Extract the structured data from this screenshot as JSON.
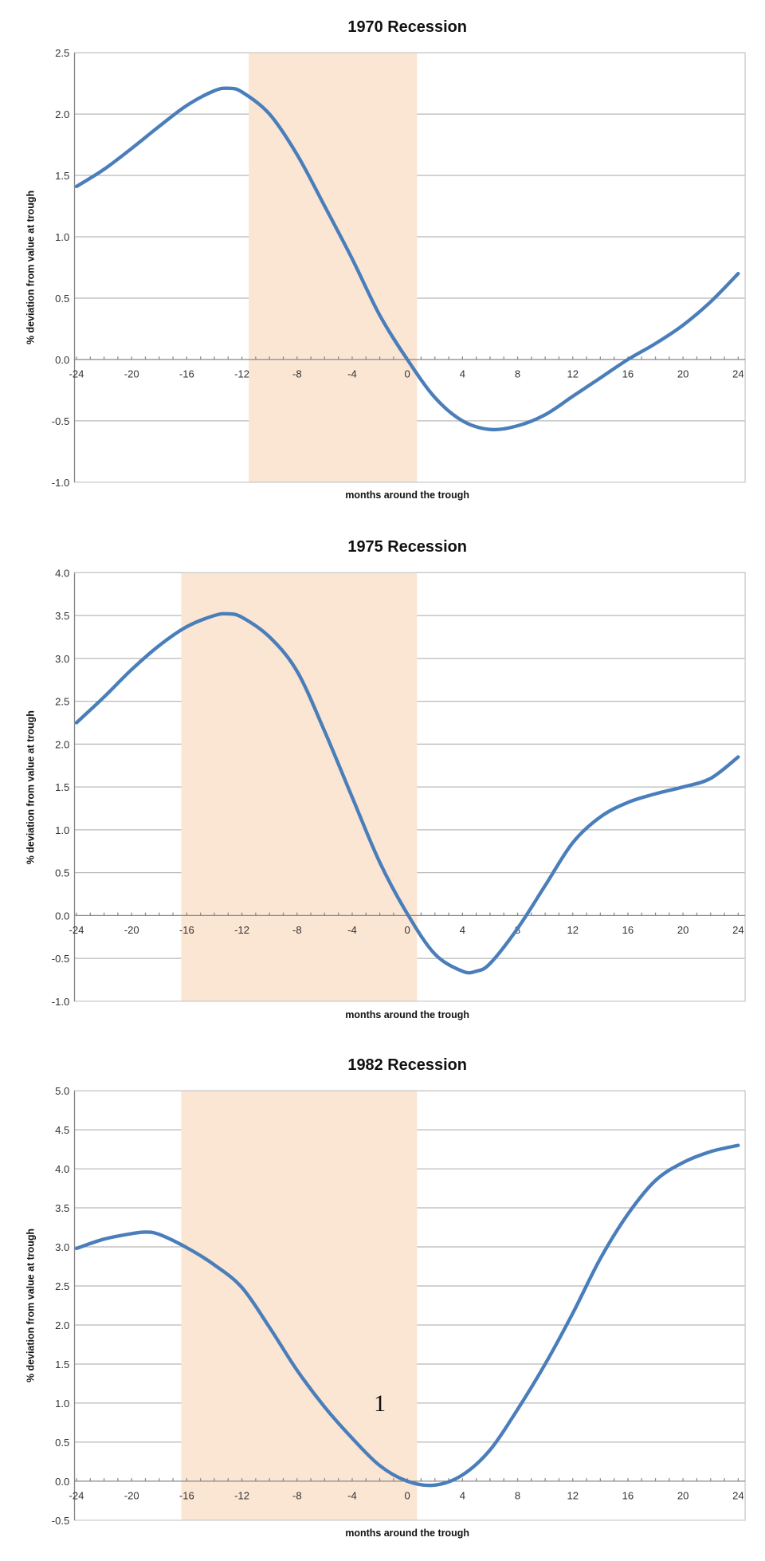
{
  "chart_data": [
    {
      "type": "line",
      "title": "1970 Recession",
      "xlabel": "months around the trough",
      "ylabel": "% deviation from value at trough",
      "xlim": [
        -24,
        24
      ],
      "ylim": [
        -1.0,
        2.5
      ],
      "ystep": 0.5,
      "xticks": [
        -24,
        -20,
        -16,
        -12,
        -8,
        -4,
        0,
        4,
        8,
        12,
        16,
        20,
        24
      ],
      "yticks": [
        "-1.0",
        "-0.5",
        "0.0",
        "0.5",
        "1.0",
        "1.5",
        "2.0",
        "2.5"
      ],
      "grid": true,
      "shaded_recession": [
        -11.5,
        0.7
      ],
      "shade_color": "#fbe5d3",
      "line_color": "#4a7ebb",
      "x": [
        -24,
        -22,
        -20,
        -18,
        -16,
        -14,
        -13,
        -12,
        -10,
        -8,
        -6,
        -4,
        -2,
        0,
        2,
        4,
        6,
        8,
        10,
        12,
        14,
        16,
        18,
        20,
        22,
        24
      ],
      "y": [
        1.41,
        1.55,
        1.72,
        1.9,
        2.07,
        2.19,
        2.21,
        2.18,
        2.0,
        1.67,
        1.25,
        0.82,
        0.36,
        0.0,
        -0.31,
        -0.5,
        -0.57,
        -0.54,
        -0.45,
        -0.3,
        -0.15,
        0.0,
        0.13,
        0.28,
        0.47,
        0.7
      ]
    },
    {
      "type": "line",
      "title": "1975 Recession",
      "xlabel": "months around the trough",
      "ylabel": "% deviation from value at trough",
      "xlim": [
        -24,
        24
      ],
      "ylim": [
        -1.0,
        4.0
      ],
      "ystep": 0.5,
      "xticks": [
        -24,
        -20,
        -16,
        -12,
        -8,
        -4,
        0,
        4,
        8,
        12,
        16,
        20,
        24
      ],
      "yticks": [
        "-1.0",
        "-0.5",
        "0.0",
        "0.5",
        "1.0",
        "1.5",
        "2.0",
        "2.5",
        "3.0",
        "3.5",
        "4.0"
      ],
      "grid": true,
      "shaded_recession": [
        -16.4,
        0.7
      ],
      "shade_color": "#fbe5d3",
      "line_color": "#4a7ebb",
      "x": [
        -24,
        -22,
        -20,
        -18,
        -16,
        -14,
        -13,
        -12,
        -10,
        -8,
        -6,
        -4,
        -2,
        0,
        2,
        4,
        5,
        6,
        8,
        10,
        12,
        14,
        16,
        18,
        20,
        22,
        24
      ],
      "y": [
        2.25,
        2.55,
        2.87,
        3.15,
        3.37,
        3.5,
        3.52,
        3.48,
        3.25,
        2.85,
        2.15,
        1.38,
        0.62,
        0.02,
        -0.45,
        -0.65,
        -0.65,
        -0.56,
        -0.15,
        0.35,
        0.85,
        1.15,
        1.32,
        1.42,
        1.5,
        1.6,
        1.85
      ]
    },
    {
      "type": "line",
      "title": "1982 Recession",
      "xlabel": "months around the trough",
      "ylabel": "% deviation from value at trough",
      "xlim": [
        -24,
        24
      ],
      "ylim": [
        -0.5,
        5.0
      ],
      "ystep": 0.5,
      "xticks": [
        -24,
        -20,
        -16,
        -12,
        -8,
        -4,
        0,
        4,
        8,
        12,
        16,
        20,
        24
      ],
      "yticks": [
        "-0.5",
        "0.0",
        "0.5",
        "1.0",
        "1.5",
        "2.0",
        "2.5",
        "3.0",
        "3.5",
        "4.0",
        "4.5",
        "5.0"
      ],
      "grid": true,
      "shaded_recession": [
        -16.4,
        0.7
      ],
      "shade_color": "#fbe5d3",
      "line_color": "#4a7ebb",
      "annotation": "1",
      "annotation_at": [
        -2,
        1.0
      ],
      "x": [
        -24,
        -22,
        -20,
        -19,
        -18,
        -16,
        -14,
        -12,
        -10,
        -8,
        -6,
        -4,
        -2,
        0,
        2,
        4,
        6,
        8,
        10,
        12,
        14,
        16,
        18,
        20,
        22,
        24
      ],
      "y": [
        2.98,
        3.1,
        3.17,
        3.19,
        3.16,
        2.99,
        2.77,
        2.48,
        1.97,
        1.42,
        0.95,
        0.55,
        0.2,
        0.0,
        -0.05,
        0.08,
        0.4,
        0.92,
        1.5,
        2.15,
        2.85,
        3.42,
        3.85,
        4.08,
        4.22,
        4.3
      ]
    }
  ]
}
